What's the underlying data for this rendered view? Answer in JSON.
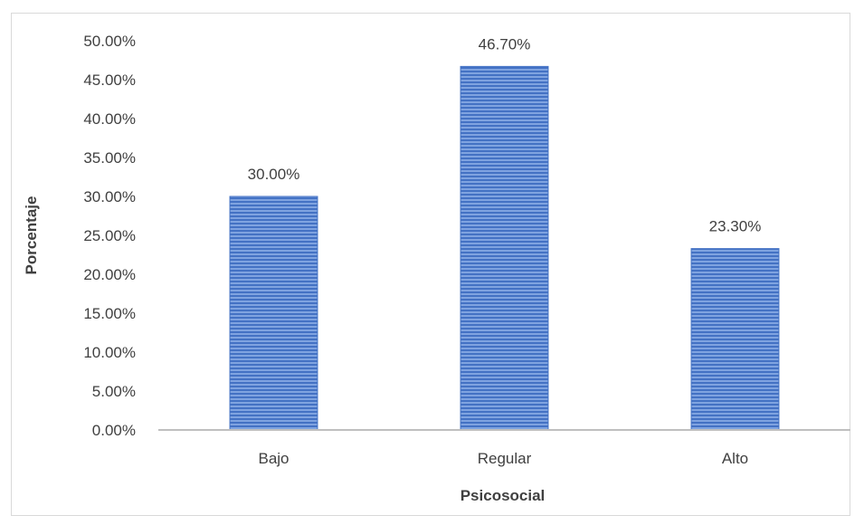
{
  "chart_data": {
    "type": "bar",
    "categories": [
      "Bajo",
      "Regular",
      "Alto"
    ],
    "values": [
      30.0,
      46.7,
      23.3
    ],
    "data_labels": [
      "30.00%",
      "46.70%",
      "23.30%"
    ],
    "title": "",
    "xlabel": "Psicosocial",
    "ylabel": "Porcentaje",
    "ylim": [
      0,
      50
    ],
    "yticks": [
      "0.00%",
      "5.00%",
      "10.00%",
      "15.00%",
      "20.00%",
      "25.00%",
      "30.00%",
      "35.00%",
      "40.00%",
      "45.00%",
      "50.00%"
    ],
    "grid": false,
    "legend": "none",
    "bar_color": "#4472c4"
  }
}
